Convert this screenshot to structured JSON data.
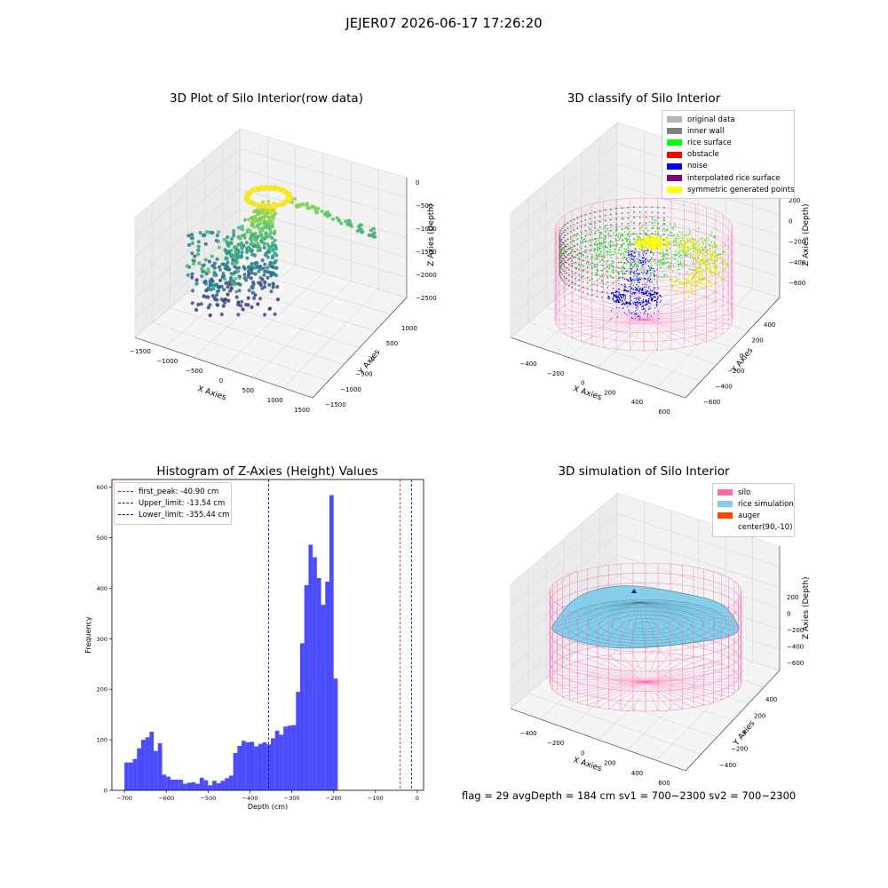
{
  "suptitle": "JEJER07 2026-06-17 17:26:20",
  "panels": {
    "raw": {
      "title": "3D Plot of Silo Interior(row data)",
      "xlabel": "X Axies",
      "ylabel": "Y Axies",
      "zlabel": "Z Axies (Depth)",
      "xticks": [
        "−1500",
        "−1000",
        "−500",
        "0",
        "500",
        "1000",
        "1500"
      ],
      "yticks": [
        "1000",
        "500",
        "0",
        "−500",
        "−1000",
        "−1500"
      ],
      "zticks": [
        "0",
        "−500",
        "−1000",
        "−1500",
        "−2000",
        "−2500"
      ]
    },
    "classify": {
      "title": "3D classify of Silo Interior",
      "xlabel": "X Axies",
      "ylabel": "Y Axies",
      "zlabel": "Z Axies (Depth)",
      "xticks": [
        "−400",
        "−200",
        "0",
        "200",
        "400",
        "600"
      ],
      "yticks": [
        "400",
        "200",
        "0",
        "−200",
        "−400",
        "−600"
      ],
      "zticks": [
        "200",
        "0",
        "−200",
        "−400",
        "−600"
      ],
      "legend": [
        {
          "label": "original data",
          "color": "#b3b3b3"
        },
        {
          "label": "inner wall",
          "color": "#808080"
        },
        {
          "label": "rice surface",
          "color": "#00ff00"
        },
        {
          "label": "obstacle",
          "color": "#ff0000"
        },
        {
          "label": "noise",
          "color": "#0000ff"
        },
        {
          "label": "interpolated rice surface",
          "color": "#800080"
        },
        {
          "label": "symmetric generated points",
          "color": "#ffff00"
        }
      ]
    },
    "simulation": {
      "title": "3D simulation of Silo Interior",
      "xlabel": "X Axies",
      "ylabel": "Y Axies",
      "zlabel": "Z Axies (Depth)",
      "xticks": [
        "−400",
        "−200",
        "0",
        "200",
        "400",
        "600"
      ],
      "yticks": [
        "400",
        "200",
        "0",
        "−200",
        "−400"
      ],
      "zticks": [
        "200",
        "0",
        "−200",
        "−400",
        "−600"
      ],
      "legend": [
        {
          "label": "silo",
          "color": "#ff69b4"
        },
        {
          "label": "rice simulation",
          "color": "#87ceeb"
        },
        {
          "label": "auger",
          "color": "#ff4500"
        },
        {
          "label": "center(90,-10)",
          "color": "#ffffff"
        }
      ]
    }
  },
  "chart_data": {
    "type": "bar",
    "title": "Histogram of Z-Axies (Height) Values",
    "xlabel": "Depth (cm)",
    "ylabel": "Frequency",
    "xlim": [
      -730,
      15
    ],
    "ylim": [
      0,
      615
    ],
    "xticks": [
      -700,
      -600,
      -500,
      -400,
      -300,
      -200,
      -100,
      0
    ],
    "yticks": [
      0,
      100,
      200,
      300,
      400,
      500,
      600
    ],
    "bin_start": -700,
    "bin_width": 10,
    "values": [
      55,
      55,
      62,
      83,
      100,
      105,
      116,
      78,
      93,
      31,
      27,
      21,
      21,
      21,
      13,
      15,
      16,
      13,
      25,
      20,
      10,
      19,
      14,
      19,
      24,
      29,
      74,
      88,
      98,
      95,
      96,
      87,
      92,
      95,
      91,
      103,
      118,
      110,
      126,
      128,
      129,
      195,
      291,
      406,
      486,
      461,
      420,
      367,
      413,
      584,
      221
    ],
    "bar_color": "#0000ff",
    "lines": [
      {
        "name": "first_peak",
        "label": "first_peak: -40.90 cm",
        "x": -40.9,
        "color": "#ff0000"
      },
      {
        "name": "upper_limit",
        "label": "Upper_limit: -13.54 cm",
        "x": -13.54,
        "color": "#0000cc"
      },
      {
        "name": "lower_limit",
        "label": "Lower_limit: -355.44 cm",
        "x": -355.44,
        "color": "#00008b"
      }
    ],
    "legend_position": "upper-left"
  },
  "footer": "flag = 29  avgDepth = 184 cm  sv1 = 700~2300  sv2 = 700~2300"
}
